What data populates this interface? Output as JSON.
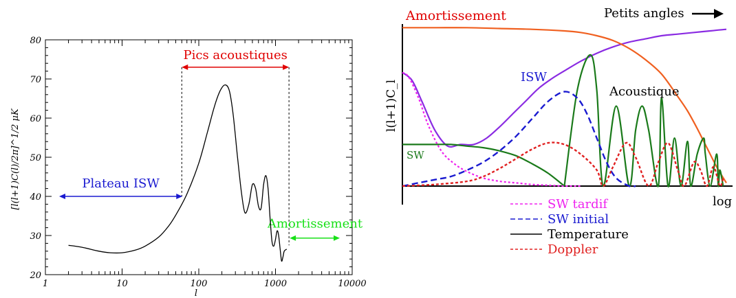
{
  "colors": {
    "blue": "#1a1ad0",
    "red": "#e00000",
    "green": "#18e018",
    "magenta": "#ee22ee",
    "dark_green": "#1a7a1a",
    "orange": "#f06020",
    "purple": "#8a2be2",
    "doppler": "#e02020",
    "black": "#000000"
  },
  "chart_data": [
    {
      "type": "line",
      "title": "",
      "xlabel": "l",
      "ylabel": "[l(l+1)C(l)/2π]^1/2 μK",
      "xscale": "log",
      "xlim": [
        1,
        10000
      ],
      "ylim": [
        20,
        80
      ],
      "xticks": [
        "1",
        "10",
        "100",
        "1000",
        "10000"
      ],
      "yticks": [
        "20",
        "30",
        "40",
        "50",
        "60",
        "70",
        "80"
      ],
      "series": [
        {
          "x": [
            2,
            3,
            5,
            7,
            10,
            15,
            20,
            30,
            40,
            50,
            70,
            100,
            130,
            160,
            190,
            220,
            250,
            280,
            320,
            360,
            400,
            450,
            500,
            550,
            600,
            650,
            700,
            750,
            800,
            850,
            900,
            950,
            1000,
            1050,
            1100,
            1150,
            1200,
            1250,
            1300,
            1400
          ],
          "y": [
            27.5,
            27.0,
            26.0,
            25.6,
            25.6,
            26.3,
            27.3,
            29.6,
            32.3,
            35.2,
            40.6,
            48.5,
            56.5,
            63.0,
            67.0,
            68.5,
            67.0,
            61.0,
            50.0,
            41.0,
            35.8,
            38.0,
            43.0,
            42.0,
            37.5,
            37.0,
            43.0,
            45.3,
            42.0,
            34.5,
            28.5,
            27.3,
            29.0,
            31.2,
            30.0,
            26.5,
            23.5,
            24.5,
            26.0,
            26.5
          ]
        }
      ],
      "annotations": {
        "pics": {
          "label": "Pics acoustiques",
          "l_range": [
            60,
            1500
          ],
          "y": 73
        },
        "plateau": {
          "label": "Plateau ISW",
          "l_range": [
            1,
            60
          ],
          "y": 40
        },
        "damping": {
          "label": "Amortissement",
          "l_range": [
            1500,
            10000
          ],
          "y": 29
        }
      }
    },
    {
      "type": "line",
      "title": "",
      "xlabel": "log l",
      "ylabel": "l(l+1)C_l",
      "xlim": [
        0,
        1
      ],
      "ylim": [
        0,
        1
      ],
      "series": [
        {
          "name": "Temperature",
          "label": "",
          "x": [
            0.0,
            0.03,
            0.06,
            0.1,
            0.14,
            0.18,
            0.22,
            0.26,
            0.3,
            0.34,
            0.38,
            0.42,
            0.46,
            0.5,
            0.55,
            0.6,
            0.65,
            0.7,
            0.75,
            0.8,
            0.85,
            0.9,
            0.95,
            1.0
          ],
          "y": [
            0.71,
            0.66,
            0.53,
            0.35,
            0.25,
            0.26,
            0.26,
            0.3,
            0.37,
            0.45,
            0.53,
            0.61,
            0.67,
            0.72,
            0.78,
            0.83,
            0.87,
            0.9,
            0.92,
            0.94,
            0.95,
            0.96,
            0.97,
            0.98
          ]
        },
        {
          "name": "Amortissement",
          "label": "Amortissement",
          "x": [
            0.0,
            0.1,
            0.2,
            0.3,
            0.4,
            0.5,
            0.55,
            0.6,
            0.65,
            0.7,
            0.75,
            0.8,
            0.85,
            0.88,
            0.91,
            0.94,
            0.97,
            1.0
          ],
          "y": [
            0.99,
            0.99,
            0.99,
            0.985,
            0.98,
            0.97,
            0.96,
            0.94,
            0.91,
            0.86,
            0.79,
            0.7,
            0.56,
            0.47,
            0.36,
            0.24,
            0.12,
            0.02
          ]
        },
        {
          "name": "SW",
          "label": "SW",
          "x": [
            0.0,
            0.06,
            0.1,
            0.15,
            0.2,
            0.25,
            0.3,
            0.35,
            0.4,
            0.45,
            0.5
          ],
          "y": [
            0.26,
            0.26,
            0.26,
            0.26,
            0.25,
            0.24,
            0.22,
            0.19,
            0.14,
            0.08,
            0.0
          ]
        },
        {
          "name": "Acoustique",
          "label": "Acoustique",
          "x": [
            0.5,
            0.54,
            0.58,
            0.6,
            0.62,
            0.66,
            0.7,
            0.72,
            0.74,
            0.76,
            0.79,
            0.8,
            0.82,
            0.84,
            0.86,
            0.88,
            0.89,
            0.91,
            0.93,
            0.935,
            0.95,
            0.97,
            0.975,
            0.98,
            0.99
          ],
          "y": [
            0.0,
            0.6,
            0.82,
            0.6,
            0.0,
            0.5,
            0.0,
            0.35,
            0.5,
            0.35,
            0.0,
            0.55,
            0.0,
            0.3,
            0.0,
            0.28,
            0.0,
            0.2,
            0.3,
            0.2,
            0.0,
            0.2,
            0.0,
            0.1,
            0.0
          ]
        },
        {
          "name": "SW tardif",
          "label": "",
          "x": [
            0.0,
            0.02,
            0.05,
            0.08,
            0.12,
            0.16,
            0.2,
            0.25,
            0.3,
            0.35,
            0.4,
            0.45,
            0.5,
            0.55
          ],
          "y": [
            0.71,
            0.68,
            0.55,
            0.38,
            0.22,
            0.14,
            0.09,
            0.05,
            0.03,
            0.02,
            0.01,
            0.005,
            0.0,
            0.0
          ]
        },
        {
          "name": "SW initial",
          "label": "ISW",
          "x": [
            0.0,
            0.05,
            0.1,
            0.15,
            0.2,
            0.25,
            0.3,
            0.35,
            0.4,
            0.45,
            0.5,
            0.54,
            0.57,
            0.6,
            0.63,
            0.66,
            0.7,
            0.72
          ],
          "y": [
            0.0,
            0.02,
            0.04,
            0.06,
            0.1,
            0.15,
            0.22,
            0.31,
            0.42,
            0.53,
            0.59,
            0.55,
            0.45,
            0.3,
            0.15,
            0.05,
            0.0,
            0.0
          ]
        },
        {
          "name": "Doppler",
          "label": "",
          "x": [
            0.0,
            0.1,
            0.2,
            0.25,
            0.3,
            0.35,
            0.4,
            0.45,
            0.5,
            0.55,
            0.6,
            0.62,
            0.65,
            0.69,
            0.72,
            0.76,
            0.79,
            0.82,
            0.85,
            0.87,
            0.9,
            0.92,
            0.94,
            0.96,
            0.98,
            0.99
          ],
          "y": [
            0.0,
            0.01,
            0.03,
            0.06,
            0.11,
            0.17,
            0.23,
            0.27,
            0.26,
            0.2,
            0.1,
            0.0,
            0.12,
            0.27,
            0.18,
            0.0,
            0.15,
            0.27,
            0.1,
            0.0,
            0.15,
            0.1,
            0.0,
            0.12,
            0.0,
            0.05
          ]
        }
      ],
      "legend": {
        "position": "bottom-center",
        "entries": [
          "SW tardif",
          "SW initial",
          "Temperature",
          "Doppler"
        ]
      },
      "annotations": {
        "arrow_label": "Petits angles"
      }
    }
  ]
}
